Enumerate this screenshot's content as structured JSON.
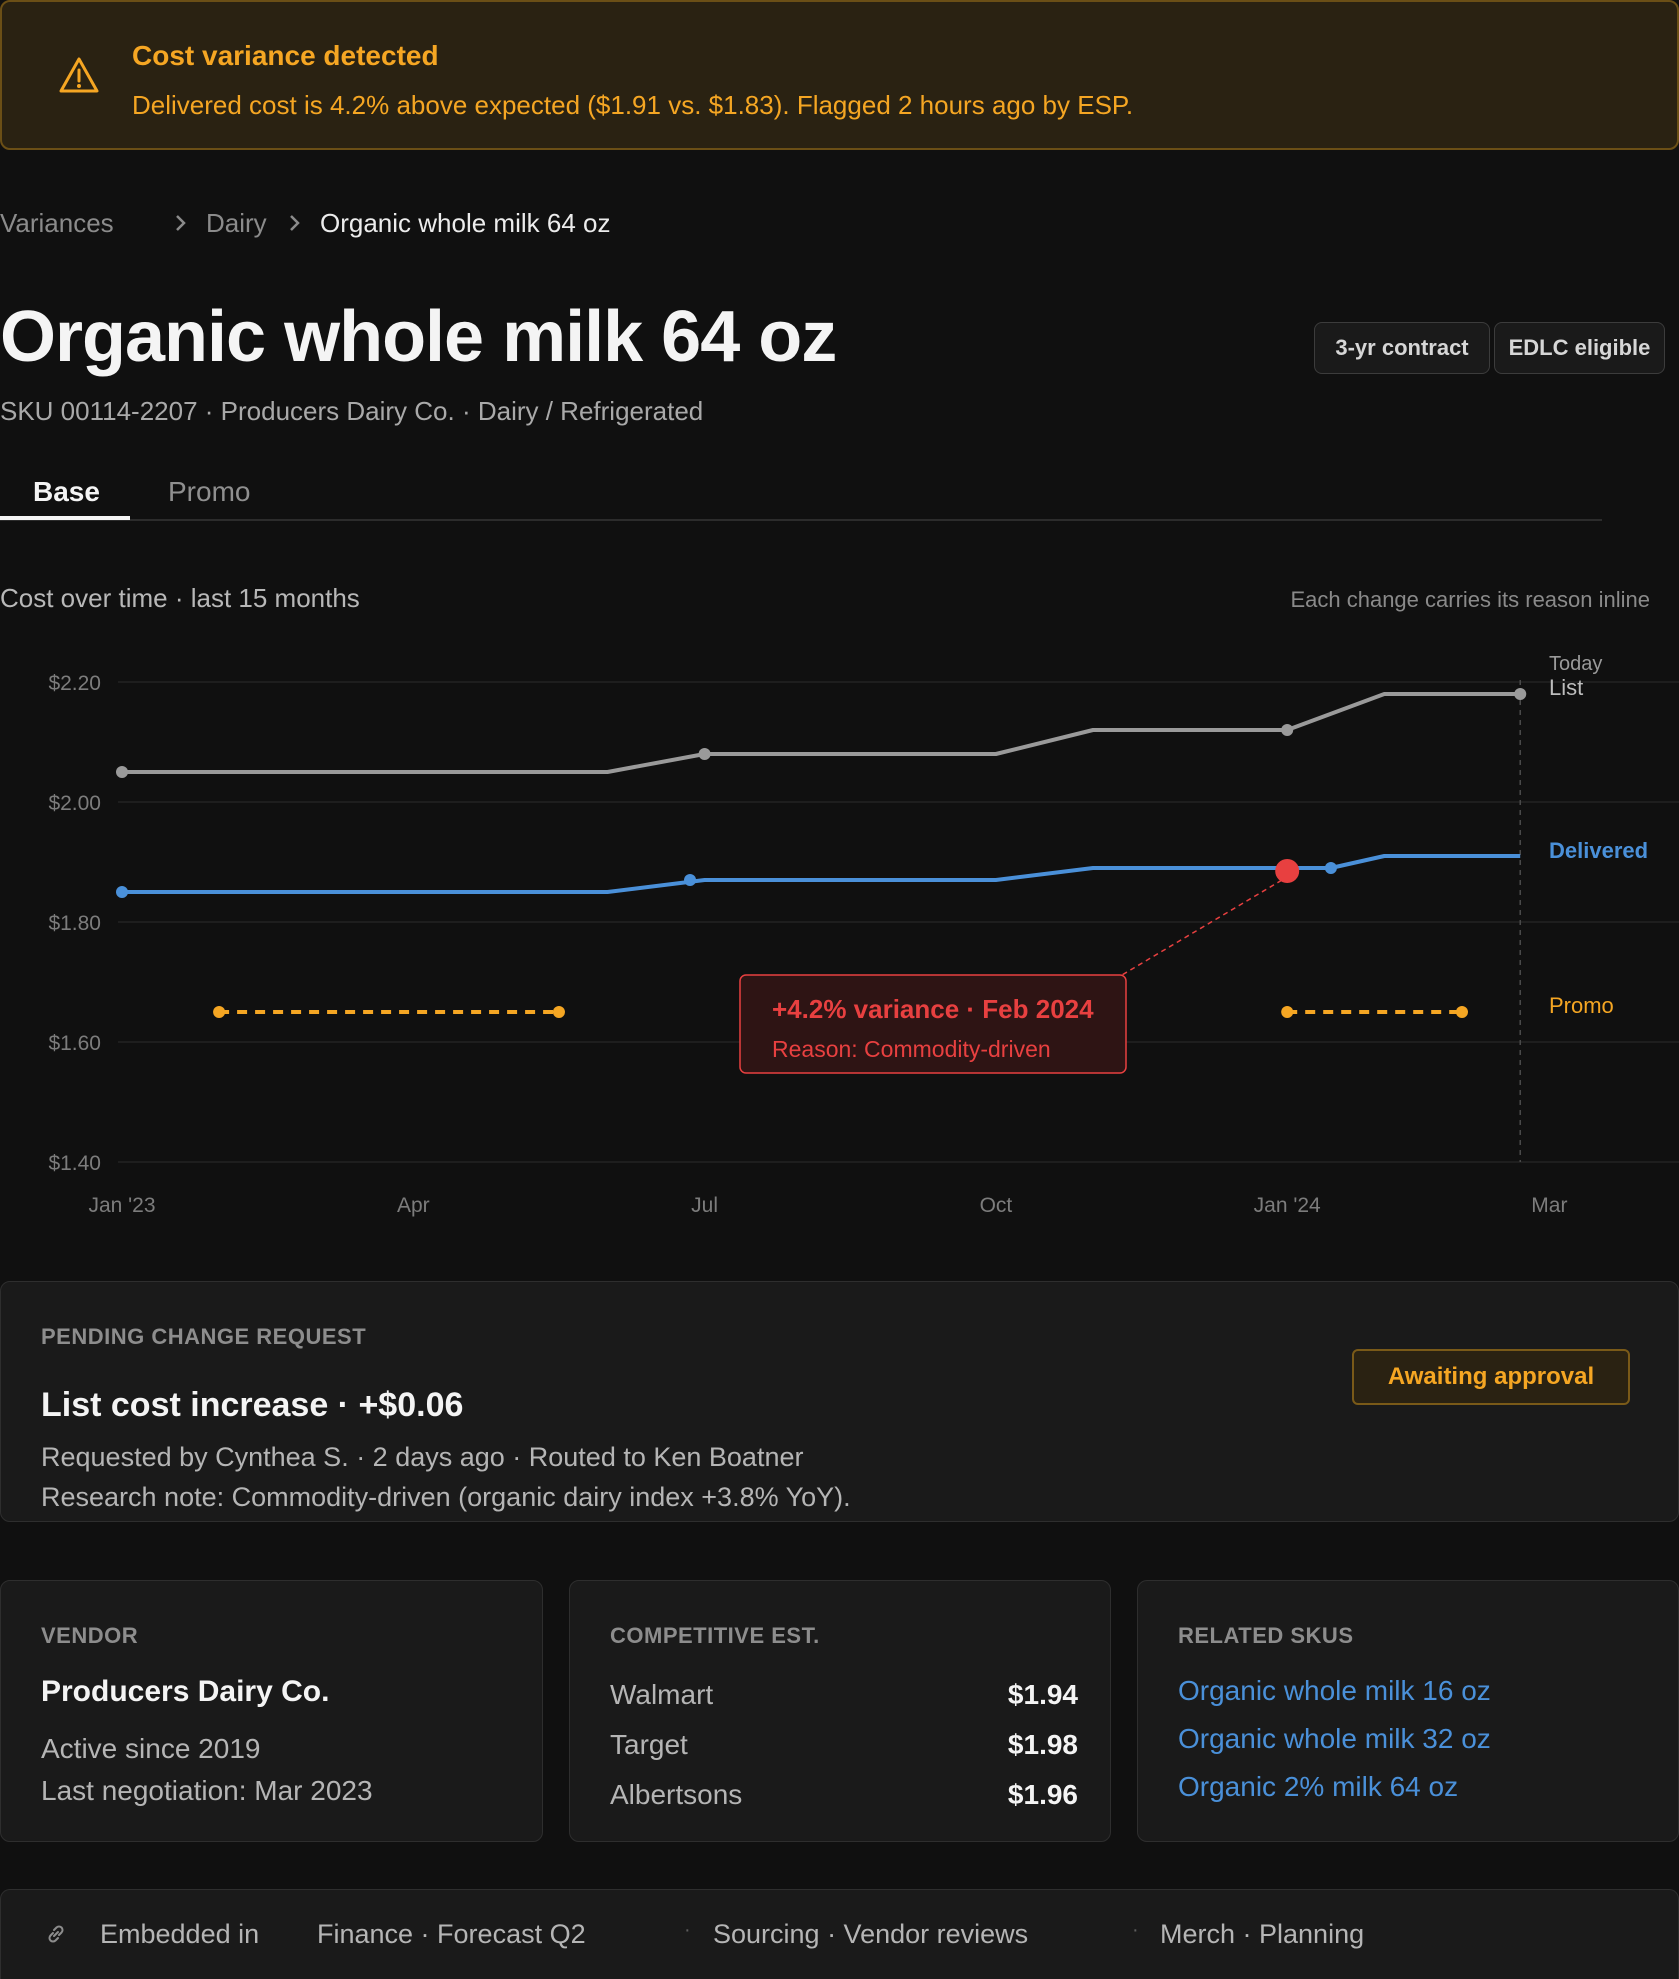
{
  "alert": {
    "title": "Cost variance detected",
    "message": "Delivered cost is 4.2% above expected ($1.91 vs. $1.83). Flagged 2 hours ago by ESP.",
    "color": "#f5a623",
    "icon": "warning-triangle-icon"
  },
  "breadcrumb": {
    "items": [
      "Variances",
      "Dairy",
      "Organic whole milk 64 oz"
    ]
  },
  "header": {
    "title": "Organic whole milk 64 oz",
    "subtitle": "SKU 00114-2207 · Producers Dairy Co. · Dairy / Refrigerated",
    "badges": [
      "3-yr contract",
      "EDLC eligible"
    ]
  },
  "tabs": [
    {
      "label": "Base",
      "active": true
    },
    {
      "label": "Promo",
      "active": false
    }
  ],
  "chart_section": {
    "title": "Cost over time · last 15 months",
    "note": "Each change carries its reason inline"
  },
  "chart_data": {
    "type": "line",
    "title": "",
    "xlabel": "",
    "ylabel": "",
    "ylim": [
      1.4,
      2.2
    ],
    "yticks": [
      "$2.20",
      "$2.00",
      "$1.80",
      "$1.60",
      "$1.40"
    ],
    "ytick_values": [
      2.2,
      2.0,
      1.8,
      1.6,
      1.4
    ],
    "xticks": [
      "Jan '23",
      "Apr",
      "Jul",
      "Oct",
      "Jan '24",
      "Mar"
    ],
    "xtick_values": [
      0,
      3,
      6,
      9,
      12,
      14.7
    ],
    "grid": true,
    "today_label": "Today",
    "today_x": 14.4,
    "series": [
      {
        "name": "List",
        "color": "#9a9a9a",
        "points": [
          [
            0,
            2.05
          ],
          [
            5,
            2.05
          ],
          [
            6,
            2.08
          ],
          [
            9,
            2.08
          ],
          [
            10,
            2.12
          ],
          [
            12,
            2.12
          ],
          [
            13,
            2.18
          ],
          [
            14.4,
            2.18
          ]
        ],
        "markers": [
          [
            0,
            2.05
          ],
          [
            6,
            2.08
          ],
          [
            12,
            2.12
          ],
          [
            14.4,
            2.18
          ]
        ]
      },
      {
        "name": "Delivered",
        "color": "#4a90d9",
        "points": [
          [
            0,
            1.85
          ],
          [
            5,
            1.85
          ],
          [
            6,
            1.87
          ],
          [
            9,
            1.87
          ],
          [
            10,
            1.89
          ],
          [
            12.45,
            1.89
          ],
          [
            13,
            1.91
          ],
          [
            14.4,
            1.91
          ]
        ],
        "markers": [
          [
            0,
            1.85
          ],
          [
            5.85,
            1.87
          ],
          [
            12.45,
            1.89
          ]
        ]
      },
      {
        "name": "Promo",
        "color": "#f5a623",
        "dashed": true,
        "segments": [
          [
            [
              1,
              1.65
            ],
            [
              4.5,
              1.65
            ]
          ],
          [
            [
              12,
              1.65
            ],
            [
              13.8,
              1.65
            ]
          ]
        ]
      }
    ],
    "annotation": {
      "label": "+4.2% variance · Feb 2024",
      "reason": "Reason: Commodity-driven",
      "point": [
        12.0,
        1.885
      ],
      "color": "#e84040"
    }
  },
  "pending": {
    "eyebrow": "PENDING CHANGE REQUEST",
    "title": "List cost increase · +$0.06",
    "requested": "Requested by Cynthea S. · 2 days ago · Routed to Ken Boatner",
    "note": "Research note: Commodity-driven (organic dairy index +3.8% YoY).",
    "status": "Awaiting approval"
  },
  "vendor": {
    "eyebrow": "VENDOR",
    "name": "Producers Dairy Co.",
    "active": "Active since 2019",
    "last_negotiation": "Last negotiation: Mar 2023"
  },
  "competitive": {
    "eyebrow": "COMPETITIVE EST.",
    "rows": [
      {
        "name": "Walmart",
        "value": "$1.94"
      },
      {
        "name": "Target",
        "value": "$1.98"
      },
      {
        "name": "Albertsons",
        "value": "$1.96"
      }
    ]
  },
  "related": {
    "eyebrow": "RELATED SKUS",
    "items": [
      "Organic whole milk 16 oz",
      "Organic whole milk 32 oz",
      "Organic 2% milk 64 oz"
    ]
  },
  "embedded": {
    "label": "Embedded in",
    "items": [
      "Finance · Forecast Q2",
      "Sourcing · Vendor reviews",
      "Merch · Planning"
    ],
    "icon": "link-icon"
  }
}
